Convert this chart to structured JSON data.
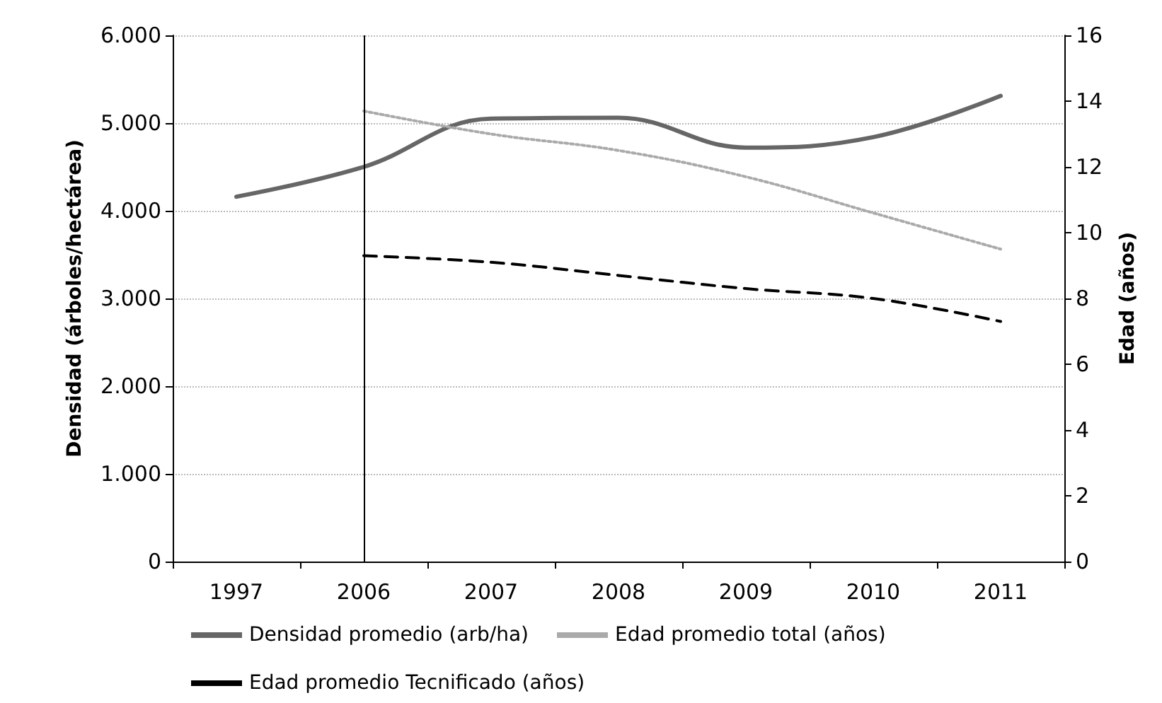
{
  "chart_data": {
    "type": "line",
    "categories": [
      "1997",
      "2006",
      "2007",
      "2008",
      "2009",
      "2010",
      "2011"
    ],
    "ylabel": "Densidad (árboles/hectárea)",
    "y2label": "Edad (años)",
    "series": [
      {
        "name": "Densidad promedio (arb/ha)",
        "color": "#666666",
        "line_style": "solid",
        "values": [
          4160,
          4500,
          5050,
          5060,
          4720,
          4840,
          5310
        ]
      },
      {
        "name": "Edad promedio total (años)",
        "color": "#aaaaaa",
        "line_style": "dotted",
        "axis": "y2",
        "values": [
          null,
          13.7,
          13.0,
          12.5,
          11.7,
          10.6,
          9.5
        ]
      },
      {
        "name": "Edad promedio Tecnificado (años)",
        "color": "#000000",
        "line_style": "dashed",
        "axis": "y2",
        "values": [
          null,
          9.3,
          9.1,
          8.7,
          8.3,
          8.0,
          7.3
        ]
      }
    ],
    "ylim": [
      0,
      6000
    ],
    "yticks": [
      {
        "value": 0,
        "label": "0"
      },
      {
        "value": 1000,
        "label": "1.000"
      },
      {
        "value": 2000,
        "label": "2.000"
      },
      {
        "value": 3000,
        "label": "3.000"
      },
      {
        "value": 4000,
        "label": "4.000"
      },
      {
        "value": 5000,
        "label": "5.000"
      },
      {
        "value": 6000,
        "label": "6.000"
      }
    ],
    "y2lim": [
      0,
      16
    ],
    "y2ticks": [
      0,
      2,
      4,
      6,
      8,
      10,
      12,
      14,
      16
    ],
    "ref_lines": [
      {
        "axis": "x",
        "value": "2006",
        "color": "#000000"
      }
    ],
    "grid": "y",
    "legend": "bottom",
    "marker": "none"
  }
}
